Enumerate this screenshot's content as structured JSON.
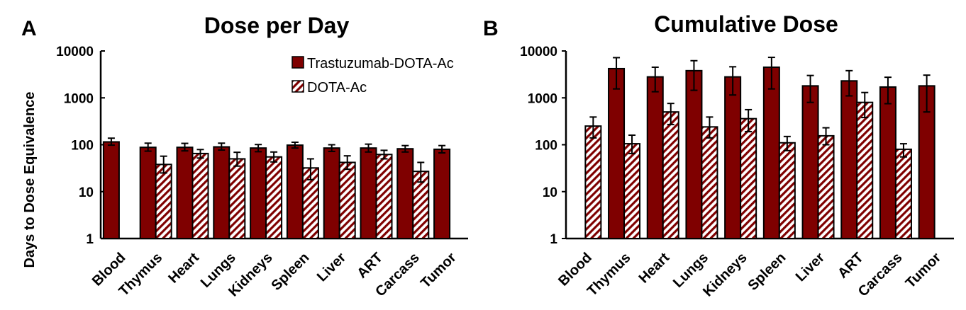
{
  "figure": {
    "panel_a_letter": "A",
    "panel_b_letter": "B",
    "ylabel": "Days to Dose Equivalence"
  },
  "legend": {
    "series_1": "Trastuzumab-DOTA-Ac",
    "series_2": "DOTA-Ac"
  },
  "colors": {
    "series_1_fill": "#7f0000",
    "series_2_hatch": "#7f0000",
    "series_2_bg": "#ffffff",
    "axis": "#000000"
  },
  "chart_data": [
    {
      "type": "bar",
      "title": "Dose per Day",
      "xlabel": "",
      "ylabel": "Days to Dose Equivalence",
      "yscale": "log",
      "ylim": [
        1,
        10000
      ],
      "yticks": [
        "1",
        "10",
        "100",
        "1000",
        "10000"
      ],
      "categories": [
        "Blood",
        "Thymus",
        "Heart",
        "Lungs",
        "Kidneys",
        "Spleen",
        "Liver",
        "ART",
        "Carcass",
        "Tumor"
      ],
      "series": [
        {
          "name": "Trastuzumab-DOTA-Ac",
          "pattern": "solid",
          "values": [
            115,
            88,
            88,
            90,
            85,
            98,
            85,
            85,
            82,
            80
          ],
          "err_low": [
            98,
            73,
            74,
            77,
            71,
            85,
            72,
            70,
            70,
            67
          ],
          "err_high": [
            138,
            108,
            107,
            108,
            101,
            113,
            100,
            103,
            96,
            96
          ]
        },
        {
          "name": "DOTA-Ac",
          "pattern": "hatched",
          "values": [
            null,
            38,
            65,
            50,
            55,
            32,
            42,
            62,
            27,
            null
          ],
          "err_low": [
            null,
            25,
            52,
            35,
            43,
            18,
            30,
            50,
            16,
            null
          ],
          "err_high": [
            null,
            57,
            79,
            69,
            70,
            50,
            58,
            76,
            42,
            null
          ]
        }
      ]
    },
    {
      "type": "bar",
      "title": "Cumulative Dose",
      "xlabel": "",
      "ylabel": "",
      "yscale": "log",
      "ylim": [
        1,
        10000
      ],
      "yticks": [
        "1",
        "10",
        "100",
        "1000",
        "10000"
      ],
      "categories": [
        "Blood",
        "Thymus",
        "Heart",
        "Lungs",
        "Kidneys",
        "Spleen",
        "Liver",
        "ART",
        "Carcass",
        "Tumor"
      ],
      "series": [
        {
          "name": "Trastuzumab-DOTA-Ac",
          "pattern": "solid",
          "values": [
            null,
            4200,
            2800,
            3800,
            2800,
            4500,
            1800,
            2300,
            1700,
            1800
          ],
          "err_low": [
            null,
            1550,
            1350,
            1450,
            1150,
            1550,
            800,
            1100,
            750,
            500
          ],
          "err_high": [
            null,
            7200,
            4500,
            6200,
            4600,
            7300,
            3000,
            3800,
            2750,
            3050
          ]
        },
        {
          "name": "DOTA-Ac",
          "pattern": "hatched",
          "values": [
            250,
            105,
            500,
            240,
            360,
            110,
            155,
            800,
            80,
            null
          ],
          "err_low": [
            140,
            65,
            270,
            140,
            190,
            75,
            100,
            380,
            55,
            null
          ],
          "err_high": [
            390,
            160,
            760,
            390,
            560,
            150,
            230,
            1300,
            105,
            null
          ]
        }
      ]
    }
  ]
}
